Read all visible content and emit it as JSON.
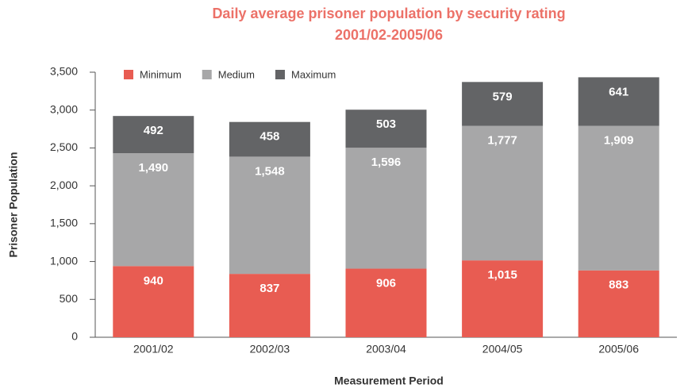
{
  "chart_data": {
    "type": "stacked_bar",
    "title": "Daily average prisoner population by security rating",
    "subtitle": "2001/02-2005/06",
    "x_label": "Measurement Period",
    "y_label": "Prisoner Population",
    "categories": [
      "2001/02",
      "2002/03",
      "2003/04",
      "2004/05",
      "2005/06"
    ],
    "series": [
      {
        "name": "Minimum",
        "color": "#e85c52",
        "values": [
          940,
          837,
          906,
          1015,
          883
        ],
        "value_labels": [
          "940",
          "837",
          "906",
          "1,015",
          "883"
        ]
      },
      {
        "name": "Medium",
        "color": "#a7a7a8",
        "values": [
          1490,
          1548,
          1596,
          1777,
          1909
        ],
        "value_labels": [
          "1,490",
          "1,548",
          "1,596",
          "1,777",
          "1,909"
        ]
      },
      {
        "name": "Maximum",
        "color": "#636466",
        "values": [
          492,
          458,
          503,
          579,
          641
        ],
        "value_labels": [
          "492",
          "458",
          "503",
          "579",
          "641"
        ]
      }
    ],
    "ylim": [
      0,
      3500
    ],
    "yticks": [
      0,
      500,
      {
        "value": 1000,
        "label": "1,000"
      },
      {
        "value": 1500,
        "label": "1,500"
      },
      {
        "value": 2000,
        "label": "2,000"
      },
      {
        "value": 2500,
        "label": "2,500"
      },
      {
        "value": 3000,
        "label": "3,000"
      },
      {
        "value": 3500,
        "label": "3,500"
      }
    ],
    "legend": "top-left",
    "grid": false
  }
}
